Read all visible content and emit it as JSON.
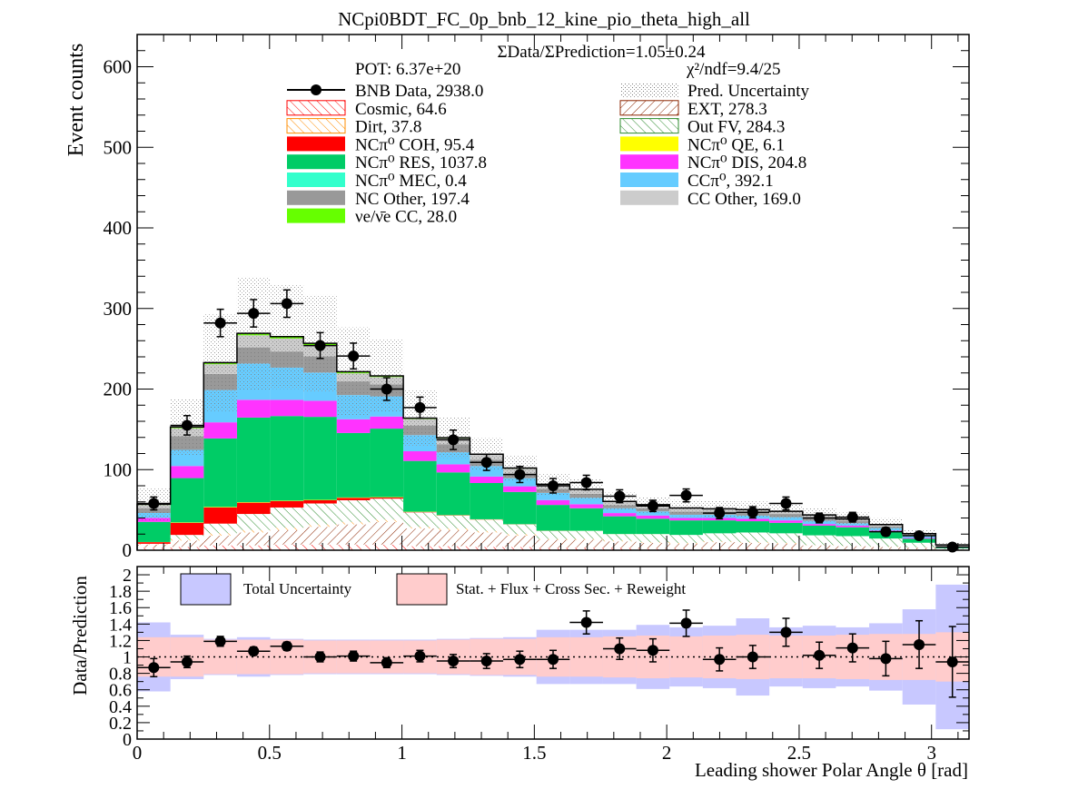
{
  "chart_data": {
    "type": "bar",
    "title": "NCpi0BDT_FC_0p_bnb_12_kine_pio_theta_high_all",
    "xlabel": "Leading shower Polar Angle θ [rad]",
    "ylabel": "Event counts",
    "ratio_ylabel": "Data/Prediction",
    "xlim": [
      0,
      3.1416
    ],
    "ylim": [
      0,
      640
    ],
    "ratio_ylim": [
      0,
      2.1
    ],
    "x_ticks": [
      "0",
      "0.5",
      "1",
      "1.5",
      "2",
      "2.5",
      "3"
    ],
    "y_ticks": [
      "0",
      "100",
      "200",
      "300",
      "400",
      "500",
      "600"
    ],
    "ratio_y_ticks": [
      "0",
      "0.2",
      "0.4",
      "0.6",
      "0.8",
      "1",
      "1.2",
      "1.4",
      "1.6",
      "1.8",
      "2"
    ],
    "grid": false,
    "bin_edges": [
      0,
      0.1257,
      0.2513,
      0.377,
      0.5027,
      0.6283,
      0.754,
      0.8796,
      1.0053,
      1.131,
      1.2566,
      1.3823,
      1.508,
      1.6336,
      1.7593,
      1.885,
      2.0106,
      2.1363,
      2.2619,
      2.3876,
      2.5133,
      2.6389,
      2.7646,
      2.8903,
      3.0159,
      3.1416
    ],
    "bin_centers": [
      0.0628,
      0.1885,
      0.3142,
      0.4398,
      0.5655,
      0.6912,
      0.8168,
      0.9425,
      1.0681,
      1.1938,
      1.3195,
      1.4451,
      1.5708,
      1.6965,
      1.8221,
      1.9478,
      2.0735,
      2.1991,
      2.3248,
      2.4504,
      2.5761,
      2.7018,
      2.8274,
      2.9531,
      3.0788
    ],
    "annotations": {
      "ratio": "ΣData/ΣPrediction=1.05±0.24",
      "pot": "POT: 6.37e+20",
      "chi2": "χ²/ndf=9.4/25"
    },
    "legend": [
      {
        "label": "BNB Data, 2938.0",
        "style": "marker"
      },
      {
        "label": "Pred. Uncertainty",
        "style": "dots"
      },
      {
        "label": "Cosmic, 64.6",
        "style": "hatch",
        "color": "#ff0000"
      },
      {
        "label": "EXT, 278.3",
        "style": "hatch",
        "color": "#8b2500"
      },
      {
        "label": "Dirt, 37.8",
        "style": "hatch",
        "color": "#ff8c00"
      },
      {
        "label": "Out FV, 284.3",
        "style": "hatch",
        "color": "#2e8b2e"
      },
      {
        "label": "NCπ⁰ COH,  95.4",
        "style": "fill",
        "color": "#ff0000"
      },
      {
        "label": "NCπ⁰ QE,  6.1",
        "style": "fill",
        "color": "#ffff00"
      },
      {
        "label": "NCπ⁰ RES,  1037.8",
        "style": "fill",
        "color": "#00cc66"
      },
      {
        "label": "NCπ⁰ DIS,  204.8",
        "style": "fill",
        "color": "#ff33ff"
      },
      {
        "label": "NCπ⁰ MEC,  0.4",
        "style": "fill",
        "color": "#33ffcc"
      },
      {
        "label": "CCπ⁰, 392.1",
        "style": "fill",
        "color": "#66ccff"
      },
      {
        "label": "NC Other, 197.4",
        "style": "fill",
        "color": "#999999"
      },
      {
        "label": "CC Other, 169.0",
        "style": "fill",
        "color": "#cccccc"
      },
      {
        "label": "νe/ν̄e CC, 28.0",
        "style": "fill",
        "color": "#66ff00"
      }
    ],
    "series": [
      {
        "name": "Cosmic",
        "kind": "hatch",
        "color": "#ff0000",
        "values": [
          3,
          4,
          6,
          6,
          7,
          7,
          7,
          7,
          5,
          5,
          4,
          4,
          3,
          3,
          3,
          2,
          2,
          2,
          2,
          2,
          1,
          1,
          1,
          1,
          0.5
        ]
      },
      {
        "name": "EXT",
        "kind": "hatch",
        "color": "#8b2500",
        "values": [
          4,
          8,
          12,
          16,
          18,
          22,
          25,
          28,
          22,
          20,
          18,
          14,
          10,
          10,
          8,
          7,
          6,
          8,
          7,
          6,
          5,
          4,
          3,
          2,
          0.5
        ]
      },
      {
        "name": "Dirt",
        "kind": "hatch",
        "color": "#ff8c00",
        "values": [
          1,
          2,
          3,
          3,
          3,
          3,
          3,
          3,
          2,
          2,
          2,
          2,
          1,
          1,
          1,
          1,
          1,
          1,
          1,
          1,
          0.5,
          0.5,
          0.5,
          0.3,
          0.2
        ]
      },
      {
        "name": "Out FV",
        "kind": "hatch",
        "color": "#2e8b2e",
        "values": [
          0,
          5,
          12,
          20,
          25,
          26,
          27,
          26,
          18,
          16,
          14,
          12,
          10,
          10,
          8,
          10,
          10,
          10,
          12,
          12,
          12,
          12,
          10,
          6,
          1
        ]
      },
      {
        "name": "NCπ⁰ COH",
        "kind": "fill",
        "color": "#ff0000",
        "values": [
          2,
          15,
          20,
          14,
          8,
          4,
          3,
          1.5,
          0.5,
          0.3,
          0.2,
          0.1,
          0.1,
          0,
          0,
          0,
          0,
          0,
          0,
          0,
          0,
          0,
          0,
          0,
          0
        ]
      },
      {
        "name": "NCπ⁰ QE",
        "kind": "fill",
        "color": "#ffff00",
        "values": [
          0.2,
          0.5,
          0.7,
          0.6,
          0.5,
          0.5,
          0.5,
          0.4,
          0.3,
          0.3,
          0.2,
          0.2,
          0.1,
          0.1,
          0.1,
          0.1,
          0,
          0,
          0,
          0,
          0,
          0,
          0,
          0,
          0
        ]
      },
      {
        "name": "NCπ⁰ RES",
        "kind": "fill",
        "color": "#00cc66",
        "values": [
          25,
          55,
          85,
          105,
          105,
          103,
          80,
          85,
          63,
          53,
          45,
          40,
          32,
          28,
          22,
          19,
          18,
          16,
          14,
          13,
          12,
          11,
          8,
          5,
          1
        ]
      },
      {
        "name": "NCπ⁰ DIS",
        "kind": "fill",
        "color": "#ff33ff",
        "values": [
          5,
          15,
          20,
          22,
          20,
          20,
          17,
          15,
          12,
          10,
          8,
          7,
          6,
          5,
          4,
          4,
          3,
          3,
          3,
          3,
          2,
          2,
          2,
          1,
          0.2
        ]
      },
      {
        "name": "NCπ⁰ MEC",
        "kind": "fill",
        "color": "#33ffcc",
        "values": [
          0,
          0,
          0.1,
          0.1,
          0.1,
          0,
          0,
          0,
          0,
          0,
          0,
          0,
          0,
          0,
          0,
          0,
          0,
          0,
          0,
          0,
          0,
          0,
          0,
          0,
          0
        ]
      },
      {
        "name": "CCπ⁰",
        "kind": "fill",
        "color": "#66ccff",
        "values": [
          6,
          20,
          40,
          45,
          40,
          35,
          30,
          25,
          20,
          15,
          13,
          10,
          9,
          8,
          6,
          5,
          4,
          4,
          4,
          4,
          4,
          3,
          3,
          2,
          1
        ]
      },
      {
        "name": "NC Other",
        "kind": "fill",
        "color": "#999999",
        "values": [
          6,
          17,
          20,
          20,
          20,
          20,
          17,
          15,
          12,
          10,
          8,
          6,
          5,
          5,
          4,
          4,
          4,
          4,
          4,
          4,
          4,
          3,
          2,
          2,
          1
        ]
      },
      {
        "name": "CC Other",
        "kind": "fill",
        "color": "#cccccc",
        "values": [
          4,
          10,
          12,
          15,
          16,
          14,
          10,
          9,
          8,
          7,
          6,
          6,
          5,
          5,
          4,
          4,
          4,
          3,
          3,
          3,
          3,
          2,
          2,
          1,
          1
        ]
      },
      {
        "name": "νe/ν̄e CC",
        "kind": "fill",
        "color": "#66ff00",
        "values": [
          0.8,
          1.5,
          2,
          2.5,
          2.5,
          2.2,
          2,
          1.5,
          1.2,
          1,
          0.8,
          0.7,
          0.6,
          0.5,
          0.5,
          0.4,
          0.4,
          0.4,
          0.4,
          0.3,
          0.3,
          0.3,
          0.3,
          0.3,
          0.2
        ]
      }
    ],
    "pred_uncertainty": [
      20,
      35,
      60,
      70,
      65,
      60,
      55,
      45,
      35,
      25,
      20,
      16,
      14,
      13,
      11,
      10,
      10,
      10,
      10,
      9,
      9,
      8,
      8,
      5,
      3
    ],
    "data": {
      "name": "BNB Data",
      "values": [
        58,
        155,
        282,
        294,
        306,
        254,
        241,
        200,
        177,
        137,
        109,
        94,
        80,
        84,
        67,
        55,
        68,
        46,
        47,
        58,
        40,
        41,
        23,
        18,
        4
      ],
      "errors": [
        8,
        12,
        17,
        17,
        17,
        16,
        16,
        14,
        13,
        12,
        10,
        10,
        9,
        9,
        8,
        7,
        8,
        7,
        7,
        8,
        6,
        6,
        5,
        4,
        2
      ]
    },
    "ratio_data": {
      "values": [
        0.87,
        0.94,
        1.19,
        1.07,
        1.13,
        1.0,
        1.01,
        0.93,
        1.01,
        0.95,
        0.95,
        0.97,
        0.97,
        1.42,
        1.1,
        1.08,
        1.41,
        0.97,
        1.0,
        1.3,
        1.02,
        1.11,
        0.98,
        1.15,
        0.94
      ],
      "errors": [
        0.11,
        0.07,
        0.06,
        0.05,
        0.05,
        0.06,
        0.06,
        0.06,
        0.07,
        0.08,
        0.09,
        0.1,
        0.11,
        0.14,
        0.13,
        0.14,
        0.16,
        0.14,
        0.14,
        0.17,
        0.16,
        0.17,
        0.21,
        0.29,
        0.43
      ]
    },
    "ratio_total_unc": [
      0.42,
      0.27,
      0.22,
      0.24,
      0.22,
      0.21,
      0.21,
      0.21,
      0.21,
      0.22,
      0.23,
      0.24,
      0.33,
      0.33,
      0.33,
      0.39,
      0.36,
      0.38,
      0.47,
      0.36,
      0.38,
      0.36,
      0.41,
      0.58,
      0.88
    ],
    "ratio_syst_unc": [
      0.24,
      0.24,
      0.21,
      0.21,
      0.21,
      0.2,
      0.2,
      0.2,
      0.2,
      0.21,
      0.22,
      0.22,
      0.24,
      0.24,
      0.25,
      0.26,
      0.25,
      0.26,
      0.27,
      0.26,
      0.26,
      0.27,
      0.28,
      0.28,
      0.3
    ],
    "ratio_legend": {
      "total": {
        "label": "Total Uncertainty",
        "color": "#c8c8ff"
      },
      "syst": {
        "label": "Stat. + Flux + Cross Sec. + Reweight",
        "color": "#ffcccc"
      }
    }
  }
}
